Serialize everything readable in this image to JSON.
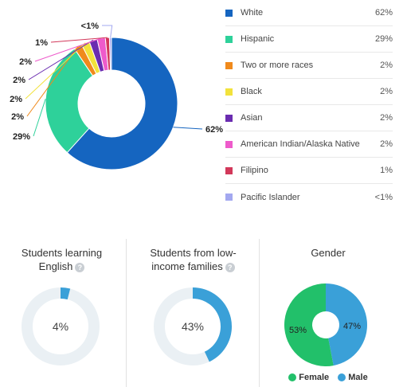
{
  "chart_data": [
    {
      "type": "pie",
      "title": "",
      "categories": [
        "White",
        "Hispanic",
        "Two or more races",
        "Black",
        "Asian",
        "American Indian/Alaska Native",
        "Filipino",
        "Pacific Islander"
      ],
      "values": [
        62,
        29,
        2,
        2,
        2,
        2,
        1,
        0.5
      ],
      "value_labels": [
        "62%",
        "29%",
        "2%",
        "2%",
        "2%",
        "2%",
        "1%",
        "<1%"
      ],
      "colors": [
        "#1565c0",
        "#2ed19a",
        "#f08a1c",
        "#f2e23c",
        "#6a2cb0",
        "#ee5bcb",
        "#d2385a",
        "#a3a8f0"
      ]
    },
    {
      "type": "pie",
      "title": "Students learning English",
      "values": [
        4
      ],
      "value_label": "4%",
      "color": "#3aa0d8",
      "track_color": "#eaf0f4"
    },
    {
      "type": "pie",
      "title": "Students from low-income families",
      "values": [
        43
      ],
      "value_label": "43%",
      "color": "#3aa0d8",
      "track_color": "#eaf0f4"
    },
    {
      "type": "pie",
      "title": "Gender",
      "categories": [
        "Female",
        "Male"
      ],
      "values": [
        53,
        47
      ],
      "value_labels": [
        "53%",
        "47%"
      ],
      "colors": [
        "#22c06a",
        "#3aa0d8"
      ]
    }
  ],
  "legend": {
    "rows": [
      {
        "label": "White",
        "value": "62%",
        "color": "#1565c0"
      },
      {
        "label": "Hispanic",
        "value": "29%",
        "color": "#2ed19a"
      },
      {
        "label": "Two or more races",
        "value": "2%",
        "color": "#f08a1c"
      },
      {
        "label": "Black",
        "value": "2%",
        "color": "#f2e23c"
      },
      {
        "label": "Asian",
        "value": "2%",
        "color": "#6a2cb0"
      },
      {
        "label": "American Indian/Alaska Native",
        "value": "2%",
        "color": "#ee5bcb"
      },
      {
        "label": "Filipino",
        "value": "1%",
        "color": "#d2385a"
      },
      {
        "label": "Pacific Islander",
        "value": "<1%",
        "color": "#a3a8f0"
      }
    ]
  },
  "panels": {
    "english": {
      "title_line1": "Students learning",
      "title_line2": "English",
      "value": "4%",
      "help_icon": "question-icon"
    },
    "lowincome": {
      "title_line1": "Students from low-",
      "title_line2": "income families",
      "value": "43%",
      "help_icon": "question-icon"
    },
    "gender": {
      "title": "Gender",
      "female_label": "Female",
      "male_label": "Male",
      "female_value": "53%",
      "male_value": "47%"
    }
  }
}
